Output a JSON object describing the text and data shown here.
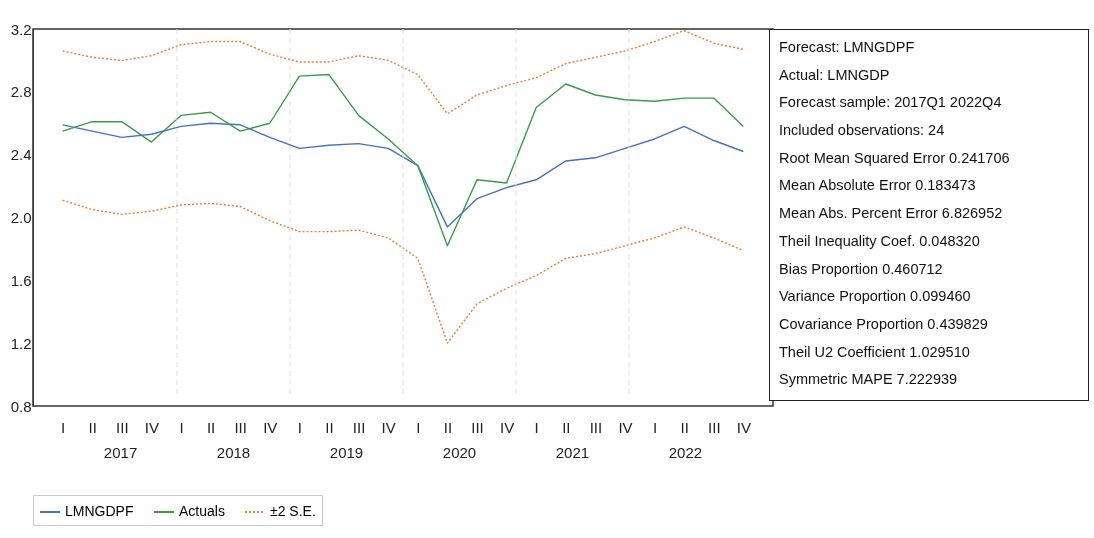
{
  "chart_data": {
    "type": "line",
    "categories": [
      "I",
      "II",
      "III",
      "IV",
      "I",
      "II",
      "III",
      "IV",
      "I",
      "II",
      "III",
      "IV",
      "I",
      "II",
      "III",
      "IV",
      "I",
      "II",
      "III",
      "IV",
      "I",
      "II",
      "III",
      "IV"
    ],
    "series": [
      {
        "name": "LMNGDPF",
        "color": "#4472c4",
        "line_style": "solid",
        "values": [
          2.59,
          2.55,
          2.51,
          2.53,
          2.58,
          2.6,
          2.59,
          2.51,
          2.44,
          2.46,
          2.47,
          2.44,
          2.33,
          1.94,
          2.12,
          2.19,
          2.24,
          2.36,
          2.38,
          2.44,
          2.5,
          2.58,
          2.49,
          2.42
        ]
      },
      {
        "name": "Actuals",
        "color": "#3a9a4a",
        "line_style": "solid",
        "values": [
          2.55,
          2.61,
          2.61,
          2.48,
          2.65,
          2.67,
          2.55,
          2.6,
          2.9,
          2.91,
          2.65,
          2.5,
          2.33,
          1.82,
          2.24,
          2.22,
          2.7,
          2.85,
          2.78,
          2.75,
          2.74,
          2.76,
          2.76,
          2.58
        ]
      },
      {
        "name": "±2 S.E.",
        "color": "#ed7d31",
        "line_style": "dotted",
        "values": [
          3.06,
          3.02,
          3.0,
          3.03,
          3.1,
          3.12,
          3.12,
          3.04,
          2.99,
          2.99,
          3.03,
          3.0,
          2.91,
          2.66,
          2.78,
          2.84,
          2.89,
          2.98,
          3.02,
          3.06,
          3.12,
          3.19,
          3.11,
          3.07
        ]
      },
      {
        "color": "#ed7d31",
        "line_style": "dotted",
        "values": [
          2.11,
          2.05,
          2.02,
          2.04,
          2.08,
          2.09,
          2.07,
          1.98,
          1.91,
          1.91,
          1.92,
          1.87,
          1.74,
          1.2,
          1.45,
          1.55,
          1.63,
          1.74,
          1.77,
          1.82,
          1.87,
          1.94,
          1.87,
          1.79
        ]
      }
    ],
    "ylim": [
      0.8,
      3.2
    ],
    "yticks": [
      0.8,
      1.2,
      1.6,
      {
        "value": 2,
        "label": "2.0"
      },
      2.4,
      2.8,
      3.2
    ],
    "grid": "x",
    "legend": "bottom",
    "annotations": [
      "2017",
      "2018",
      "2019",
      "2020",
      "2021",
      "2022",
      "Forecast: LMNGDPF",
      "Actual: LMNGDP",
      "Forecast sample: 2017Q1 2022Q4",
      "Included observations: 24",
      "Root Mean Squared Error 0.241706",
      "Mean Absolute Error 0.183473",
      "Mean Abs. Percent Error 6.826952",
      "Theil Inequality Coef. 0.048320",
      "Bias Proportion 0.460712",
      "Variance Proportion 0.099460",
      "Covariance Proportion 0.439829",
      "Theil U2 Coefficient 1.029510",
      "Symmetric MAPE 7.222939"
    ]
  }
}
